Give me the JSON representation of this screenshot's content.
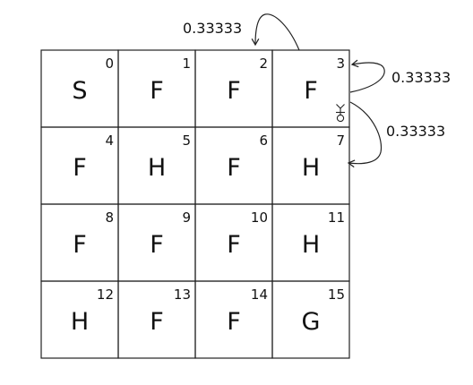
{
  "grid": {
    "rows": 4,
    "cols": 4,
    "cells": [
      {
        "index": "0",
        "letter": "S"
      },
      {
        "index": "1",
        "letter": "F"
      },
      {
        "index": "2",
        "letter": "F"
      },
      {
        "index": "3",
        "letter": "F"
      },
      {
        "index": "4",
        "letter": "F"
      },
      {
        "index": "5",
        "letter": "H"
      },
      {
        "index": "6",
        "letter": "F"
      },
      {
        "index": "7",
        "letter": "H"
      },
      {
        "index": "8",
        "letter": "F"
      },
      {
        "index": "9",
        "letter": "F"
      },
      {
        "index": "10",
        "letter": "F"
      },
      {
        "index": "11",
        "letter": "H"
      },
      {
        "index": "12",
        "letter": "H"
      },
      {
        "index": "13",
        "letter": "F"
      },
      {
        "index": "14",
        "letter": "F"
      },
      {
        "index": "15",
        "letter": "G"
      }
    ]
  },
  "agent": {
    "cell": 3,
    "icon": "person-icon"
  },
  "transitions": [
    {
      "from": 3,
      "to": 2,
      "probability": "0.33333"
    },
    {
      "from": 3,
      "to": 3,
      "probability": "0.33333"
    },
    {
      "from": 3,
      "to": 7,
      "probability": "0.33333"
    }
  ]
}
